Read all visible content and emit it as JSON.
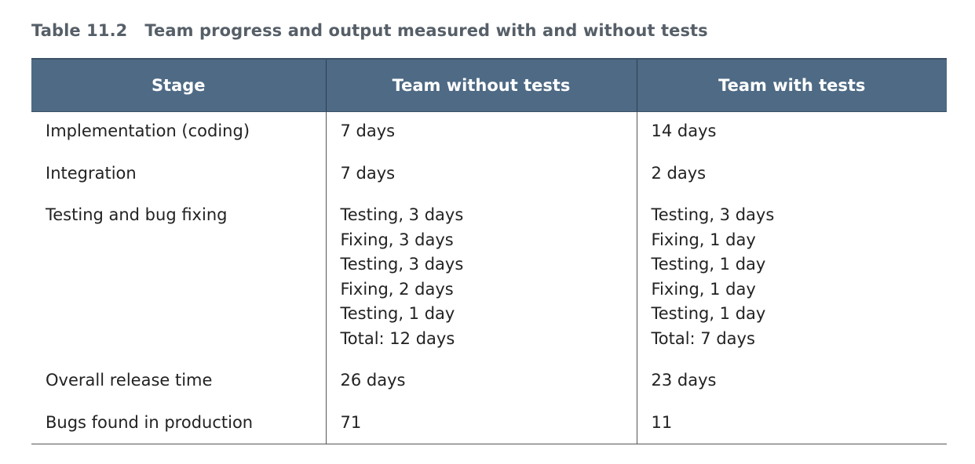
{
  "caption": {
    "number": "Table 11.2",
    "title": "Team progress and output measured with and without tests"
  },
  "headers": [
    "Stage",
    "Team without tests",
    "Team with tests"
  ],
  "rows": [
    {
      "stage": "Implementation (coding)",
      "without": [
        "7 days"
      ],
      "with": [
        "14 days"
      ]
    },
    {
      "stage": "Integration",
      "without": [
        "7 days"
      ],
      "with": [
        "2 days"
      ]
    },
    {
      "stage": "Testing and bug fixing",
      "without": [
        "Testing, 3 days",
        "Fixing, 3 days",
        "Testing, 3 days",
        "Fixing, 2 days",
        "Testing, 1 day",
        "Total: 12 days"
      ],
      "with": [
        "Testing, 3 days",
        "Fixing, 1 day",
        "Testing, 1 day",
        "Fixing, 1 day",
        "Testing, 1 day",
        "Total: 7 days"
      ]
    },
    {
      "stage": "Overall release time",
      "without": [
        "26 days"
      ],
      "with": [
        "23 days"
      ]
    },
    {
      "stage": "Bugs found in production",
      "without": [
        "71"
      ],
      "with": [
        "11"
      ]
    }
  ],
  "colors": {
    "header_bg": "#4e6a85",
    "header_text": "#ffffff",
    "caption_text": "#565f68"
  }
}
